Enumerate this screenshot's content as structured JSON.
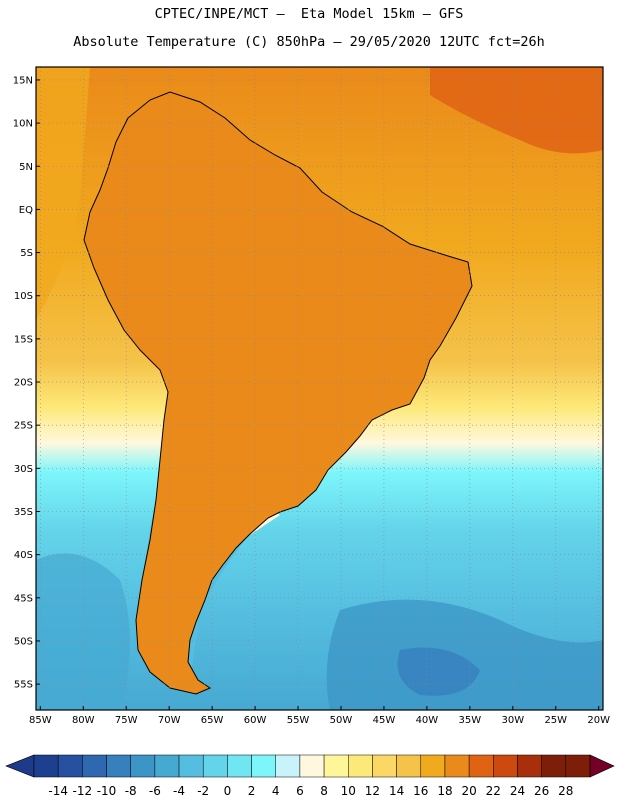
{
  "header": {
    "line1": "CPTEC/INPE/MCT –  Eta Model 15km – GFS",
    "line2": "Absolute Temperature (C) 850hPa – 29/05/2020 12UTC fct=26h"
  },
  "map": {
    "lat_labels": [
      "15N",
      "10N",
      "5N",
      "EQ",
      "5S",
      "10S",
      "15S",
      "20S",
      "25S",
      "30S",
      "35S",
      "40S",
      "45S",
      "50S",
      "55S"
    ],
    "lat_values": [
      15,
      10,
      5,
      0,
      -5,
      -10,
      -15,
      -20,
      -25,
      -30,
      -35,
      -40,
      -45,
      -50,
      -55
    ],
    "lon_labels": [
      "85W",
      "80W",
      "75W",
      "70W",
      "65W",
      "60W",
      "55W",
      "50W",
      "45W",
      "40W",
      "35W",
      "30W",
      "25W",
      "20W"
    ],
    "lon_values": [
      -85,
      -80,
      -75,
      -70,
      -65,
      -60,
      -55,
      -50,
      -45,
      -40,
      -35,
      -30,
      -25,
      -20
    ],
    "extent": {
      "lon_min": -85.5,
      "lon_max": -19.5,
      "lat_min": -58,
      "lat_max": 16.5
    }
  },
  "colorbar": {
    "labels": [
      "-14",
      "-12",
      "-10",
      "-8",
      "-6",
      "-4",
      "-2",
      "0",
      "2",
      "4",
      "6",
      "8",
      "10",
      "12",
      "14",
      "16",
      "18",
      "20",
      "22",
      "24",
      "26",
      "28"
    ],
    "colors": [
      "#1c3f8f",
      "#2551a0",
      "#2e68b1",
      "#3680be",
      "#3c95c6",
      "#46a9d2",
      "#55bee0",
      "#64d4ea",
      "#70e6f2",
      "#7df6fb",
      "#c8f3fb",
      "#fff8de",
      "#fff599",
      "#fde97a",
      "#fbd865",
      "#f5c34a",
      "#f1a91e",
      "#ea8a1a",
      "#e06314",
      "#cc4a0f",
      "#a82f0b",
      "#7d1e08",
      "#730026",
      "#1e3a8a"
    ]
  },
  "fields": {
    "colors": {
      "ocean_north": "#f1a91e",
      "land_warm": "#e06314",
      "land_mid": "#ea8a1a",
      "ocean_south": "#55bee0",
      "ocean_cold": "#46a9d2",
      "coast_line": "#000000",
      "grid_line": "#8a8a8a"
    }
  }
}
